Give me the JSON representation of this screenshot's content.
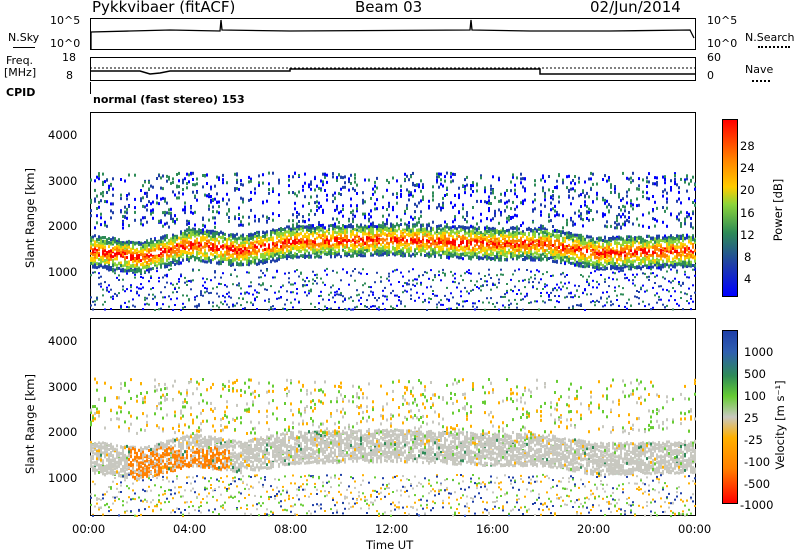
{
  "header": {
    "site": "Pykkvibaer (fitACF)",
    "beam": "Beam 03",
    "date": "02/Jun/2014"
  },
  "top_panel": {
    "nsky_label": "N.Sky",
    "nsky_ticks": [
      "10^5",
      "10^0"
    ],
    "nsearch_label": "N.Search",
    "nsearch_ticks": [
      "10^5",
      "10^0"
    ],
    "freq_label": "Freq.",
    "freq_unit": "[MHz]",
    "freq_ticks": [
      "18",
      "8"
    ],
    "nave_label": "Nave",
    "nave_ticks": [
      "60",
      "0"
    ],
    "cpid_label": "CPID",
    "cpid_value": "normal (fast stereo) 153"
  },
  "chart_data": [
    {
      "type": "heatmap",
      "name": "power",
      "ylabel": "Slant Range [km]",
      "yticks": [
        "4000",
        "3000",
        "2000",
        "1000"
      ],
      "ylim": [
        180,
        4500
      ],
      "colorbar_label": "Power [dB]",
      "colorbar_ticks": [
        "28",
        "24",
        "20",
        "16",
        "12",
        "8",
        "4"
      ],
      "colorbar_colors": [
        "#0000ff",
        "#1f3fa8",
        "#2e8b57",
        "#8bd43a",
        "#ffcc00",
        "#ff8000",
        "#ff0000"
      ],
      "main_band": [
        {
          "hour": 0,
          "range_km": 1500
        },
        {
          "hour": 2,
          "range_km": 1350
        },
        {
          "hour": 4,
          "range_km": 1650
        },
        {
          "hour": 6,
          "range_km": 1500
        },
        {
          "hour": 8,
          "range_km": 1700
        },
        {
          "hour": 12,
          "range_km": 1750
        },
        {
          "hour": 16,
          "range_km": 1650
        },
        {
          "hour": 18,
          "range_km": 1650
        },
        {
          "hour": 20,
          "range_km": 1450
        },
        {
          "hour": 24,
          "range_km": 1500
        }
      ]
    },
    {
      "type": "heatmap",
      "name": "velocity",
      "xlabel": "Time UT",
      "xticks": [
        "00:00",
        "04:00",
        "08:00",
        "12:00",
        "16:00",
        "20:00",
        "00:00"
      ],
      "xlim": [
        0,
        24
      ],
      "ylabel": "Slant Range [km]",
      "yticks": [
        "4000",
        "3000",
        "2000",
        "1000"
      ],
      "ylim": [
        180,
        4500
      ],
      "colorbar_label": "Velocity [m s⁻¹]",
      "colorbar_ticks": [
        "1000",
        "500",
        "100",
        "25",
        "-25",
        "-100",
        "-500",
        "-1000"
      ],
      "colorbar_colors": [
        "#1f3fa8",
        "#2f5fb0",
        "#2e8b57",
        "#66cc33",
        "#c8c8c0",
        "#ffb000",
        "#ff8000",
        "#ff0000"
      ]
    }
  ]
}
